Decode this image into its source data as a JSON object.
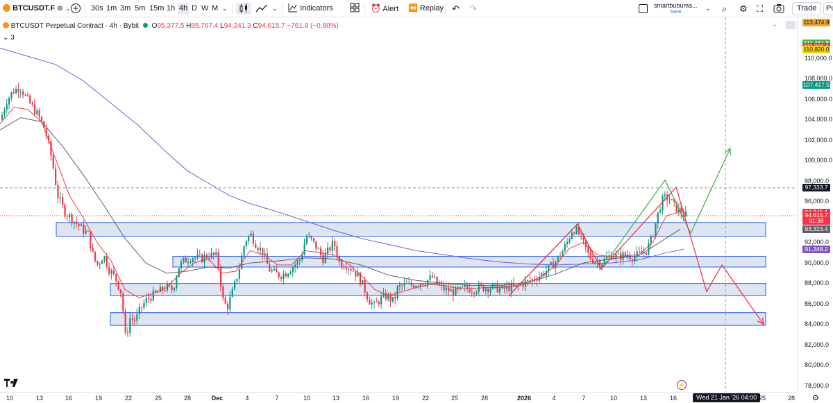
{
  "toolbar": {
    "symbol": "BTCUSDT.F",
    "intervals": [
      "30s",
      "1m",
      "3m",
      "5m",
      "15m",
      "1h",
      "4h",
      "D",
      "W",
      "M"
    ],
    "active_interval": "4h",
    "indicators_label": "Indicators",
    "alert_label": "Alert",
    "replay_label": "Replay",
    "user_name": "smartbubuma...",
    "user_save": "Save",
    "trade_label": "Trade",
    "publish_label": "Pu"
  },
  "legend": {
    "title": "BTCUSDT Perpetual Contract · 4h · Bybit",
    "o_label": "O",
    "o_value": "95,377.5",
    "h_label": "H",
    "h_value": "95,767.4",
    "l_label": "L",
    "l_value": "94,241.3",
    "c_label": "C",
    "c_value": "94,615.7",
    "change": "−761.8 (−0.80%)",
    "indicator_count": "3"
  },
  "colors": {
    "up": "#089981",
    "down": "#f23645",
    "zone_fill": "#d1dbee",
    "zone_border": "#2962ff",
    "ema_fast": "#f23645",
    "ema_slow": "#5d606b",
    "ma_long": "#6c5ce7",
    "arrow_green": "#4caf50",
    "arrow_red": "#f23645"
  },
  "chart_data": {
    "type": "candlestick",
    "title": "BTCUSDT Perpetual Contract · 4h · Bybit",
    "x_ticks": [
      "10",
      "13",
      "16",
      "19",
      "22",
      "25",
      "28",
      "Dec",
      "4",
      "7",
      "10",
      "13",
      "16",
      "19",
      "22",
      "25",
      "28",
      "2026",
      "4",
      "7",
      "10",
      "13",
      "16",
      "Wed 21 Jan '26 04:00",
      "25",
      "28"
    ],
    "y_ticks": [
      78000,
      80000,
      82000,
      84000,
      86000,
      88000,
      90000,
      92000,
      94000,
      96000,
      98000,
      100000,
      102000,
      104000,
      106000,
      108000,
      110000
    ],
    "ylim": [
      77400,
      114000
    ],
    "price_badges": [
      {
        "label": "113,474.9",
        "value": 113474.9,
        "color": "#f5a623"
      },
      {
        "label": "111,461.8",
        "value": 111461.8,
        "color": "#4caf50"
      },
      {
        "label": "111,086.1",
        "value": 111086.1,
        "color": "#f23645"
      },
      {
        "label": "110,820.0",
        "value": 110820.0,
        "color": "#f5d300"
      },
      {
        "label": "107,417.5",
        "value": 107417.5,
        "color": "#089981"
      },
      {
        "label": "97,333.7",
        "value": 97333.7,
        "color": "#131722"
      },
      {
        "label": "94,941.1",
        "value": 94941.1,
        "color": "#f23645"
      },
      {
        "label": "94,615.7",
        "value": 94615.7,
        "color": "#f23645"
      },
      {
        "label": "01:38",
        "value": 94100,
        "color": "#f23645"
      },
      {
        "label": "93,323.4",
        "value": 93323.4,
        "color": "#5d606b"
      },
      {
        "label": "91,348.2",
        "value": 91348.2,
        "color": "#7e57c2"
      }
    ],
    "support_resistance_zones": [
      {
        "from": 92600,
        "to": 93950
      },
      {
        "from": 89600,
        "to": 90650
      },
      {
        "from": 86800,
        "to": 88000
      },
      {
        "from": 83900,
        "to": 85150
      }
    ],
    "close_path": [
      [
        0,
        104000
      ],
      [
        8,
        105800
      ],
      [
        18,
        106800
      ],
      [
        28,
        107200
      ],
      [
        36,
        106200
      ],
      [
        44,
        105400
      ],
      [
        54,
        104400
      ],
      [
        64,
        103000
      ],
      [
        74,
        100000
      ],
      [
        82,
        96600
      ],
      [
        92,
        95000
      ],
      [
        104,
        94200
      ],
      [
        116,
        93400
      ],
      [
        126,
        92800
      ],
      [
        134,
        90400
      ],
      [
        140,
        89800
      ],
      [
        148,
        90800
      ],
      [
        156,
        89400
      ],
      [
        166,
        88400
      ],
      [
        174,
        87000
      ],
      [
        180,
        82500
      ],
      [
        186,
        84600
      ],
      [
        194,
        84400
      ],
      [
        202,
        85600
      ],
      [
        210,
        86400
      ],
      [
        218,
        86800
      ],
      [
        228,
        87200
      ],
      [
        238,
        87600
      ],
      [
        248,
        87400
      ],
      [
        256,
        89600
      ],
      [
        264,
        90200
      ],
      [
        276,
        90600
      ],
      [
        288,
        90400
      ],
      [
        300,
        90800
      ],
      [
        312,
        90600
      ],
      [
        320,
        86400
      ],
      [
        326,
        85600
      ],
      [
        336,
        87600
      ],
      [
        344,
        89600
      ],
      [
        352,
        92200
      ],
      [
        360,
        92800
      ],
      [
        368,
        91800
      ],
      [
        378,
        91000
      ],
      [
        386,
        89400
      ],
      [
        394,
        89000
      ],
      [
        402,
        88800
      ],
      [
        410,
        89000
      ],
      [
        420,
        89600
      ],
      [
        432,
        90400
      ],
      [
        440,
        92600
      ],
      [
        448,
        92200
      ],
      [
        456,
        91400
      ],
      [
        464,
        90400
      ],
      [
        472,
        91200
      ],
      [
        480,
        92000
      ],
      [
        488,
        90000
      ],
      [
        498,
        89800
      ],
      [
        506,
        89400
      ],
      [
        514,
        88800
      ],
      [
        522,
        87800
      ],
      [
        530,
        86400
      ],
      [
        538,
        85800
      ],
      [
        546,
        86400
      ],
      [
        556,
        86800
      ],
      [
        566,
        86200
      ],
      [
        572,
        87600
      ],
      [
        580,
        87800
      ],
      [
        590,
        87800
      ],
      [
        600,
        88000
      ],
      [
        612,
        88200
      ],
      [
        622,
        88600
      ],
      [
        630,
        87800
      ],
      [
        640,
        87400
      ],
      [
        650,
        87200
      ],
      [
        660,
        87200
      ],
      [
        670,
        87600
      ],
      [
        680,
        87400
      ],
      [
        690,
        87600
      ],
      [
        700,
        87600
      ],
      [
        712,
        87600
      ],
      [
        722,
        87400
      ],
      [
        732,
        87600
      ],
      [
        742,
        87600
      ],
      [
        752,
        88000
      ],
      [
        762,
        88200
      ],
      [
        772,
        88600
      ],
      [
        782,
        89000
      ],
      [
        792,
        89600
      ],
      [
        800,
        90200
      ],
      [
        808,
        91000
      ],
      [
        816,
        92000
      ],
      [
        824,
        93400
      ],
      [
        832,
        93000
      ],
      [
        840,
        91800
      ],
      [
        848,
        90600
      ],
      [
        856,
        90200
      ],
      [
        864,
        90000
      ],
      [
        872,
        90400
      ],
      [
        880,
        90800
      ],
      [
        890,
        90600
      ],
      [
        900,
        90800
      ],
      [
        910,
        90600
      ],
      [
        920,
        90800
      ],
      [
        930,
        91200
      ],
      [
        938,
        92400
      ],
      [
        946,
        94600
      ],
      [
        952,
        96000
      ],
      [
        958,
        96400
      ],
      [
        964,
        96200
      ],
      [
        970,
        95600
      ],
      [
        976,
        95200
      ],
      [
        982,
        94800
      ],
      [
        988,
        94600
      ]
    ],
    "ema_fast_path": [
      [
        0,
        103600
      ],
      [
        20,
        105200
      ],
      [
        40,
        105000
      ],
      [
        60,
        103800
      ],
      [
        80,
        100200
      ],
      [
        100,
        96600
      ],
      [
        120,
        94400
      ],
      [
        140,
        92000
      ],
      [
        160,
        90200
      ],
      [
        180,
        87400
      ],
      [
        200,
        86600
      ],
      [
        220,
        87000
      ],
      [
        240,
        87600
      ],
      [
        260,
        89000
      ],
      [
        280,
        90000
      ],
      [
        300,
        90400
      ],
      [
        320,
        89000
      ],
      [
        340,
        89200
      ],
      [
        360,
        91200
      ],
      [
        380,
        90800
      ],
      [
        400,
        89800
      ],
      [
        420,
        89800
      ],
      [
        440,
        91200
      ],
      [
        460,
        91000
      ],
      [
        480,
        90800
      ],
      [
        500,
        90000
      ],
      [
        520,
        88800
      ],
      [
        540,
        87400
      ],
      [
        560,
        86800
      ],
      [
        580,
        87200
      ],
      [
        600,
        87600
      ],
      [
        620,
        87900
      ],
      [
        640,
        87800
      ],
      [
        660,
        87500
      ],
      [
        680,
        87500
      ],
      [
        700,
        87600
      ],
      [
        720,
        87600
      ],
      [
        740,
        87700
      ],
      [
        760,
        88000
      ],
      [
        780,
        88700
      ],
      [
        800,
        89700
      ],
      [
        820,
        91400
      ],
      [
        840,
        92000
      ],
      [
        860,
        90800
      ],
      [
        880,
        90600
      ],
      [
        900,
        90700
      ],
      [
        920,
        90800
      ],
      [
        940,
        92000
      ],
      [
        960,
        94600
      ],
      [
        980,
        95000
      ],
      [
        988,
        94900
      ]
    ],
    "ema_slow_path": [
      [
        0,
        103000
      ],
      [
        30,
        104200
      ],
      [
        60,
        103800
      ],
      [
        90,
        101400
      ],
      [
        120,
        98600
      ],
      [
        150,
        95600
      ],
      [
        180,
        92400
      ],
      [
        210,
        90000
      ],
      [
        240,
        89000
      ],
      [
        270,
        89200
      ],
      [
        300,
        89600
      ],
      [
        330,
        89500
      ],
      [
        360,
        90000
      ],
      [
        400,
        90200
      ],
      [
        440,
        90500
      ],
      [
        480,
        90400
      ],
      [
        520,
        89800
      ],
      [
        560,
        88800
      ],
      [
        600,
        88300
      ],
      [
        640,
        88000
      ],
      [
        680,
        87800
      ],
      [
        720,
        87800
      ],
      [
        760,
        88100
      ],
      [
        800,
        88900
      ],
      [
        840,
        90000
      ],
      [
        880,
        90400
      ],
      [
        920,
        90700
      ],
      [
        950,
        92000
      ],
      [
        980,
        93300
      ]
    ],
    "ma_long_path": [
      [
        0,
        111000
      ],
      [
        40,
        110200
      ],
      [
        80,
        109400
      ],
      [
        120,
        107800
      ],
      [
        160,
        105600
      ],
      [
        200,
        103400
      ],
      [
        240,
        100800
      ],
      [
        270,
        99000
      ],
      [
        300,
        97800
      ],
      [
        330,
        96600
      ],
      [
        360,
        95800
      ],
      [
        400,
        95000
      ],
      [
        440,
        94100
      ],
      [
        480,
        93200
      ],
      [
        520,
        92400
      ],
      [
        560,
        91800
      ],
      [
        600,
        91200
      ],
      [
        640,
        90800
      ],
      [
        680,
        90400
      ],
      [
        720,
        90100
      ],
      [
        760,
        89900
      ],
      [
        800,
        89800
      ],
      [
        840,
        89900
      ],
      [
        880,
        90000
      ],
      [
        920,
        90300
      ],
      [
        960,
        91000
      ],
      [
        985,
        91350
      ]
    ],
    "projection_green": [
      [
        733,
        86800
      ],
      [
        832,
        93800
      ],
      [
        866,
        89400
      ],
      [
        958,
        98100
      ],
      [
        995,
        92900
      ],
      [
        1052,
        101200
      ]
    ],
    "projection_red": [
      [
        733,
        86800
      ],
      [
        832,
        93800
      ],
      [
        866,
        89400
      ],
      [
        974,
        97400
      ],
      [
        1018,
        87200
      ],
      [
        1040,
        89800
      ],
      [
        1100,
        84000
      ]
    ],
    "last_price_line": 94615.7,
    "crosshair_price": 97333.7
  }
}
